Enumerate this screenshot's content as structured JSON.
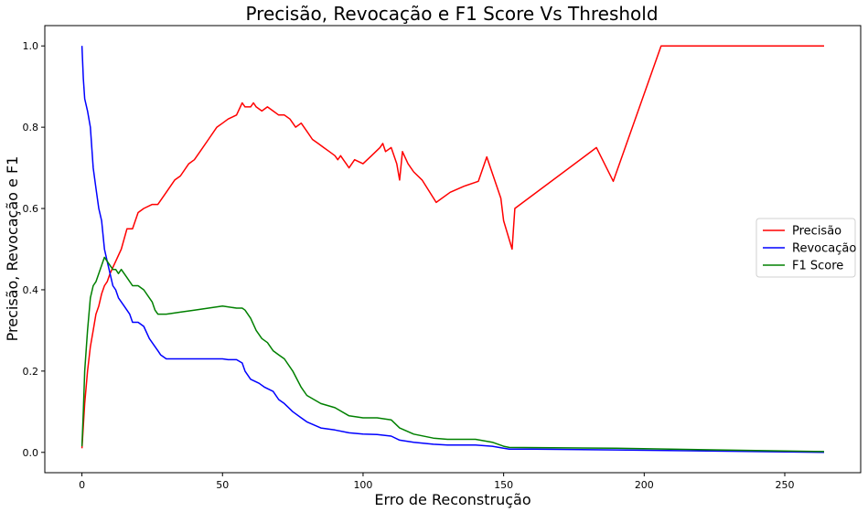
{
  "chart_data": {
    "type": "line",
    "title": "Precisão, Revocação e F1 Score Vs Threshold",
    "xlabel": "Erro de Reconstrução",
    "ylabel": "Precisão, Revocação e F1",
    "xlim": [
      -13.2,
      277
    ],
    "ylim": [
      -0.05,
      1.05
    ],
    "xticks": [
      0,
      50,
      100,
      150,
      200,
      250
    ],
    "yticks": [
      0.0,
      0.2,
      0.4,
      0.6,
      0.8,
      1.0
    ],
    "xtick_labels": [
      "0",
      "50",
      "100",
      "150",
      "200",
      "250"
    ],
    "ytick_labels": [
      "0.0",
      "0.2",
      "0.4",
      "0.6",
      "0.8",
      "1.0"
    ],
    "grid": false,
    "legend_position": "center-right",
    "series": [
      {
        "name": "Precisão",
        "color": "#ff0000",
        "x": [
          0,
          1,
          2,
          3,
          4,
          5,
          6,
          7,
          8,
          9,
          10,
          12,
          14,
          16,
          18,
          20,
          22,
          25,
          27,
          30,
          33,
          35,
          38,
          40,
          42,
          45,
          48,
          50,
          52,
          55,
          57,
          58,
          60,
          61,
          62,
          64,
          66,
          68,
          70,
          72,
          74,
          76,
          78,
          80,
          82,
          84,
          86,
          88,
          90,
          91,
          92,
          93,
          94,
          95,
          97,
          100,
          103,
          106,
          107,
          108,
          110,
          112,
          113,
          114,
          116,
          118,
          121,
          126,
          131,
          136,
          141,
          144,
          149,
          150,
          153,
          154,
          183,
          189,
          206,
          215,
          240,
          264
        ],
        "y": [
          0.01,
          0.12,
          0.2,
          0.26,
          0.3,
          0.34,
          0.36,
          0.39,
          0.41,
          0.42,
          0.44,
          0.47,
          0.5,
          0.55,
          0.55,
          0.59,
          0.6,
          0.61,
          0.61,
          0.64,
          0.67,
          0.68,
          0.71,
          0.72,
          0.74,
          0.77,
          0.8,
          0.81,
          0.82,
          0.83,
          0.86,
          0.85,
          0.85,
          0.86,
          0.85,
          0.84,
          0.85,
          0.84,
          0.83,
          0.83,
          0.82,
          0.8,
          0.81,
          0.79,
          0.77,
          0.76,
          0.75,
          0.74,
          0.73,
          0.72,
          0.73,
          0.72,
          0.71,
          0.7,
          0.72,
          0.71,
          0.73,
          0.75,
          0.76,
          0.74,
          0.75,
          0.71,
          0.67,
          0.74,
          0.71,
          0.69,
          0.67,
          0.615,
          0.64,
          0.655,
          0.667,
          0.727,
          0.625,
          0.57,
          0.5,
          0.6,
          0.75,
          0.667,
          1.0,
          1.0,
          1.0,
          1.0
        ]
      },
      {
        "name": "Revocação",
        "color": "#0000ff",
        "x": [
          0,
          0.5,
          1,
          2,
          3,
          4,
          5,
          6,
          7,
          8,
          9,
          10,
          11,
          12,
          13,
          15,
          17,
          18,
          20,
          22,
          24,
          26,
          27,
          28,
          30,
          35,
          40,
          45,
          50,
          52,
          55,
          57,
          58,
          60,
          63,
          65,
          68,
          70,
          72,
          75,
          78,
          80,
          85,
          90,
          95,
          100,
          105,
          110,
          113,
          118,
          125,
          130,
          140,
          146,
          150,
          152,
          160,
          190,
          264
        ],
        "y": [
          1.0,
          0.92,
          0.87,
          0.84,
          0.8,
          0.7,
          0.65,
          0.6,
          0.57,
          0.5,
          0.47,
          0.44,
          0.41,
          0.4,
          0.38,
          0.36,
          0.34,
          0.32,
          0.32,
          0.31,
          0.28,
          0.26,
          0.25,
          0.24,
          0.23,
          0.23,
          0.23,
          0.23,
          0.23,
          0.228,
          0.228,
          0.22,
          0.2,
          0.18,
          0.17,
          0.16,
          0.15,
          0.13,
          0.12,
          0.1,
          0.085,
          0.075,
          0.06,
          0.055,
          0.048,
          0.045,
          0.044,
          0.04,
          0.03,
          0.025,
          0.02,
          0.018,
          0.018,
          0.015,
          0.01,
          0.008,
          0.008,
          0.006,
          0.0
        ]
      },
      {
        "name": "F1 Score",
        "color": "#008000",
        "x": [
          0,
          0.5,
          1,
          2,
          3,
          4,
          5,
          6,
          7,
          8,
          9,
          10,
          11,
          12,
          13,
          14,
          16,
          18,
          20,
          22,
          25,
          26,
          27,
          28,
          30,
          35,
          40,
          45,
          50,
          55,
          57,
          58,
          60,
          62,
          64,
          66,
          68,
          70,
          72,
          75,
          78,
          80,
          85,
          90,
          95,
          100,
          105,
          110,
          113,
          118,
          125,
          130,
          140,
          146,
          150,
          152,
          190,
          264
        ],
        "y": [
          0.015,
          0.1,
          0.2,
          0.3,
          0.38,
          0.41,
          0.42,
          0.44,
          0.46,
          0.48,
          0.47,
          0.46,
          0.45,
          0.45,
          0.44,
          0.45,
          0.43,
          0.41,
          0.41,
          0.4,
          0.37,
          0.35,
          0.34,
          0.34,
          0.34,
          0.345,
          0.35,
          0.355,
          0.36,
          0.355,
          0.355,
          0.35,
          0.33,
          0.3,
          0.28,
          0.27,
          0.25,
          0.24,
          0.23,
          0.2,
          0.16,
          0.14,
          0.12,
          0.11,
          0.09,
          0.085,
          0.085,
          0.08,
          0.06,
          0.045,
          0.035,
          0.032,
          0.032,
          0.025,
          0.015,
          0.012,
          0.01,
          0.002
        ]
      }
    ]
  }
}
